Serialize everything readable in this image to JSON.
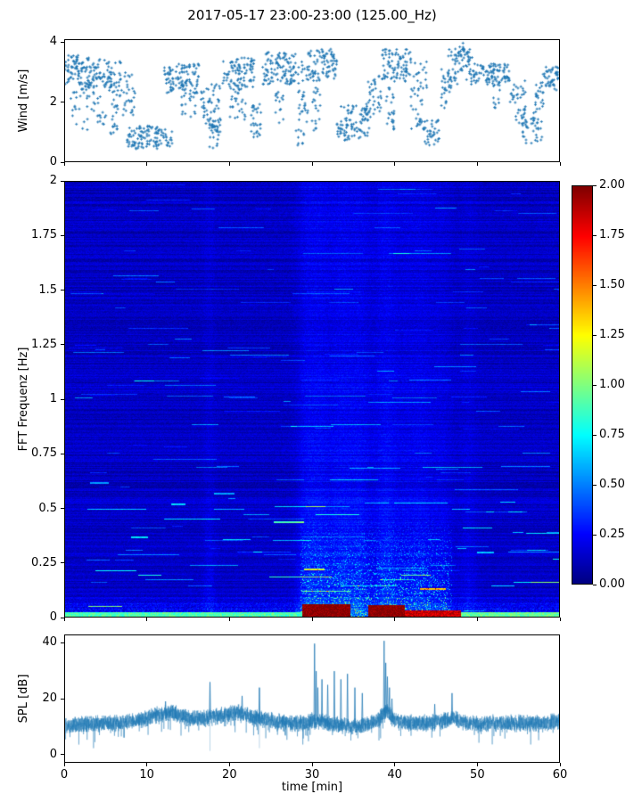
{
  "figure": {
    "title": "2017-05-17 23:00-23:00 (125.00_Hz)",
    "background": "#ffffff"
  },
  "chart_data": [
    {
      "type": "scatter",
      "name": "wind-speed",
      "ylabel": "Wind [m/s]",
      "xlim": [
        0,
        60
      ],
      "ylim": [
        0,
        4.1
      ],
      "yticks": [
        {
          "v": 0,
          "label": "0"
        },
        {
          "v": 2,
          "label": "2"
        },
        {
          "v": 4,
          "label": "4"
        }
      ],
      "marker": "plus",
      "color": "#1f77b4",
      "point_bands": [
        [
          0,
          2,
          2.6,
          3.6,
          60
        ],
        [
          0.5,
          3,
          1.0,
          2.6,
          25
        ],
        [
          2,
          5,
          2.4,
          3.5,
          80
        ],
        [
          3,
          5,
          1.2,
          2.4,
          20
        ],
        [
          5,
          7,
          2.2,
          3.4,
          50
        ],
        [
          5.5,
          6.5,
          0.9,
          2.2,
          20
        ],
        [
          7,
          8.5,
          1.5,
          3.0,
          30
        ],
        [
          7.5,
          11.5,
          0.4,
          1.2,
          90
        ],
        [
          11,
          13,
          0.5,
          1.1,
          30
        ],
        [
          12,
          16.5,
          2.3,
          3.3,
          110
        ],
        [
          14,
          16,
          1.5,
          2.4,
          20
        ],
        [
          16.5,
          19,
          1.0,
          2.6,
          60
        ],
        [
          17.5,
          19,
          0.4,
          1.4,
          25
        ],
        [
          19,
          23,
          2.4,
          3.5,
          100
        ],
        [
          20,
          22,
          1.4,
          2.5,
          25
        ],
        [
          22.5,
          24,
          0.8,
          2.0,
          30
        ],
        [
          24,
          28,
          2.6,
          3.7,
          110
        ],
        [
          25.5,
          26.5,
          1.2,
          2.4,
          15
        ],
        [
          28,
          29.5,
          0.5,
          3.4,
          45
        ],
        [
          29.5,
          33,
          2.7,
          3.8,
          90
        ],
        [
          30,
          31,
          1.0,
          2.5,
          20
        ],
        [
          33,
          37,
          0.7,
          1.9,
          100
        ],
        [
          36.5,
          38.5,
          1.5,
          2.9,
          40
        ],
        [
          38.5,
          42,
          2.7,
          3.8,
          90
        ],
        [
          39,
          40,
          1.0,
          2.6,
          25
        ],
        [
          42,
          44,
          1.0,
          3.4,
          50
        ],
        [
          43.5,
          45.5,
          0.5,
          1.4,
          35
        ],
        [
          45.5,
          47,
          1.8,
          3.2,
          30
        ],
        [
          46.5,
          49.5,
          2.6,
          3.8,
          70
        ],
        [
          47.8,
          48.6,
          3.5,
          4.0,
          10
        ],
        [
          49.5,
          54,
          2.6,
          3.3,
          100
        ],
        [
          52,
          53,
          1.8,
          2.6,
          12
        ],
        [
          54,
          56,
          1.2,
          2.8,
          40
        ],
        [
          55.5,
          58,
          0.6,
          1.8,
          45
        ],
        [
          57,
          58.5,
          1.8,
          2.8,
          20
        ],
        [
          58,
          60,
          2.3,
          3.2,
          50
        ]
      ]
    },
    {
      "type": "heatmap",
      "name": "fft-spectrogram",
      "ylabel": "FFT Frequenz [Hz]",
      "xlim": [
        0,
        60
      ],
      "ylim": [
        0,
        2
      ],
      "clim": [
        0,
        2
      ],
      "colormap": "jet",
      "yticks": [
        {
          "v": 0,
          "label": "0"
        },
        {
          "v": 0.25,
          "label": "0.25"
        },
        {
          "v": 0.5,
          "label": "0.5"
        },
        {
          "v": 0.75,
          "label": "0.75"
        },
        {
          "v": 1,
          "label": "1"
        },
        {
          "v": 1.25,
          "label": "1.25"
        },
        {
          "v": 1.5,
          "label": "1.5"
        },
        {
          "v": 1.75,
          "label": "1.75"
        },
        {
          "v": 2,
          "label": "2"
        }
      ],
      "colorbar_ticks": [
        {
          "v": 0,
          "label": "0.00"
        },
        {
          "v": 0.25,
          "label": "0.25"
        },
        {
          "v": 0.5,
          "label": "0.50"
        },
        {
          "v": 0.75,
          "label": "0.75"
        },
        {
          "v": 1,
          "label": "1.00"
        },
        {
          "v": 1.25,
          "label": "1.25"
        },
        {
          "v": 1.5,
          "label": "1.50"
        },
        {
          "v": 1.75,
          "label": "1.75"
        },
        {
          "v": 2,
          "label": "2.00"
        }
      ],
      "base_level": 0.13,
      "vertical_bands": [
        [
          17.5,
          0.5,
          0.08
        ],
        [
          29.4,
          0.9,
          0.2
        ],
        [
          31,
          0.7,
          0.12
        ],
        [
          33.6,
          1.6,
          0.22
        ],
        [
          36,
          0.8,
          0.12
        ],
        [
          39,
          1.2,
          0.22
        ],
        [
          41.5,
          0.8,
          0.1
        ],
        [
          43.2,
          0.9,
          0.15
        ],
        [
          45.6,
          1.1,
          0.12
        ],
        [
          49,
          0.7,
          0.08
        ]
      ],
      "hot_blocks": [
        [
          28.8,
          34.6,
          0,
          0.06,
          2.0
        ],
        [
          36.8,
          41.2,
          0,
          0.055,
          2.0
        ],
        [
          41.2,
          48,
          0,
          0.03,
          1.85
        ],
        [
          0,
          28.8,
          0,
          0.022,
          0.9
        ],
        [
          48,
          60,
          0,
          0.022,
          0.95
        ]
      ],
      "bright_streaks": [
        [
          25.3,
          29,
          0.44,
          0.75
        ],
        [
          12.8,
          14.6,
          0.52,
          0.6
        ],
        [
          3,
          5.2,
          0.62,
          0.55
        ],
        [
          43,
          46.2,
          0.13,
          0.85
        ],
        [
          29,
          31.5,
          0.22,
          0.7
        ],
        [
          8,
          10,
          0.37,
          0.5
        ],
        [
          50,
          52,
          0.3,
          0.45
        ],
        [
          18,
          20.5,
          0.57,
          0.5
        ]
      ]
    },
    {
      "type": "line",
      "name": "spl",
      "ylabel": "SPL [dB]",
      "xlabel": "time [min]",
      "xlim": [
        0,
        60
      ],
      "ylim": [
        -3,
        43
      ],
      "color": "#1f77b4",
      "yticks": [
        {
          "v": 0,
          "label": "0"
        },
        {
          "v": 20,
          "label": "20"
        },
        {
          "v": 40,
          "label": "40"
        }
      ],
      "xticks": [
        {
          "v": 0,
          "label": "0"
        },
        {
          "v": 10,
          "label": "10"
        },
        {
          "v": 20,
          "label": "20"
        },
        {
          "v": 30,
          "label": "30"
        },
        {
          "v": 40,
          "label": "40"
        },
        {
          "v": 50,
          "label": "50"
        },
        {
          "v": 60,
          "label": "60"
        }
      ],
      "mean_points": [
        [
          0,
          10
        ],
        [
          3,
          11
        ],
        [
          6,
          11
        ],
        [
          9,
          12
        ],
        [
          11,
          14
        ],
        [
          13,
          15
        ],
        [
          15,
          13
        ],
        [
          17,
          13
        ],
        [
          19,
          14
        ],
        [
          21,
          15
        ],
        [
          23,
          13
        ],
        [
          25,
          12
        ],
        [
          27,
          11
        ],
        [
          29,
          11
        ],
        [
          30,
          12
        ],
        [
          32,
          11
        ],
        [
          34,
          10
        ],
        [
          36,
          10
        ],
        [
          38,
          12
        ],
        [
          39,
          16
        ],
        [
          40,
          12
        ],
        [
          42,
          11
        ],
        [
          44,
          11
        ],
        [
          46,
          12
        ],
        [
          47,
          13
        ],
        [
          49,
          11
        ],
        [
          52,
          11
        ],
        [
          55,
          11
        ],
        [
          58,
          11
        ],
        [
          60,
          12
        ]
      ],
      "noise_amplitude": 3.4,
      "spikes": [
        [
          12.2,
          19
        ],
        [
          17.6,
          26
        ],
        [
          21.5,
          21
        ],
        [
          23.6,
          24
        ],
        [
          30.3,
          40
        ],
        [
          30.5,
          30
        ],
        [
          30.7,
          24
        ],
        [
          31.2,
          27
        ],
        [
          31.9,
          25
        ],
        [
          32.7,
          30
        ],
        [
          33.5,
          27
        ],
        [
          34.3,
          29
        ],
        [
          35.2,
          24
        ],
        [
          36.1,
          22
        ],
        [
          38.75,
          41
        ],
        [
          38.95,
          33
        ],
        [
          39.15,
          28
        ],
        [
          39.4,
          24
        ],
        [
          39.7,
          20
        ],
        [
          44.9,
          18
        ],
        [
          47.0,
          22
        ]
      ],
      "faint_vlines": [
        [
          17.6,
          1,
          26
        ],
        [
          23.6,
          2,
          24
        ]
      ]
    }
  ]
}
